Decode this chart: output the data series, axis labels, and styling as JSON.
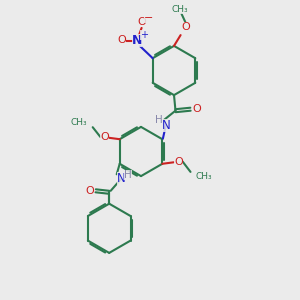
{
  "bg_color": "#ebebeb",
  "bond_color": "#2d7a4f",
  "N_color": "#2222cc",
  "O_color": "#cc2222",
  "H_color": "#8888aa",
  "line_width": 1.5,
  "figsize": [
    3.0,
    3.0
  ],
  "dpi": 100,
  "xlim": [
    0,
    10
  ],
  "ylim": [
    0,
    10
  ]
}
